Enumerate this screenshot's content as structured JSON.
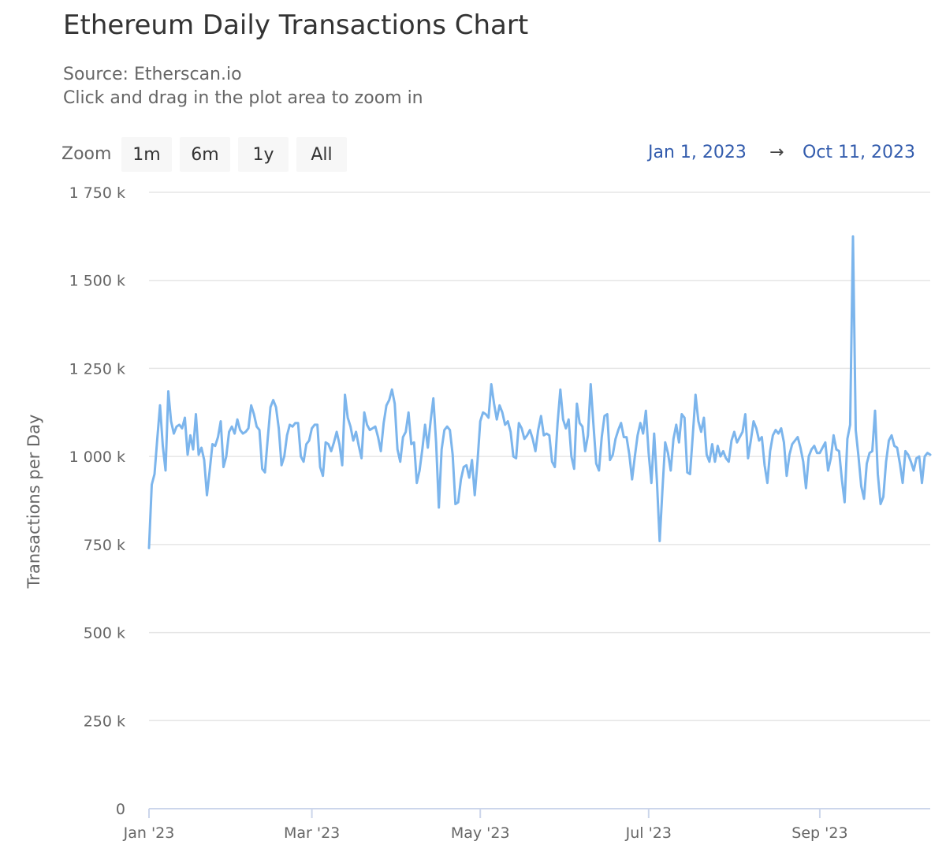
{
  "title": "Ethereum Daily Transactions Chart",
  "subtitle": "Source: Etherscan.io",
  "instruction": "Click and drag in the plot area to zoom in",
  "range_selector": {
    "label": "Zoom",
    "buttons": [
      "1m",
      "6m",
      "1y",
      "All"
    ],
    "from": "Jan 1, 2023",
    "arrow": "→",
    "to": "Oct 11, 2023"
  },
  "colors": {
    "series": "#7cb5ec",
    "grid": "#e6e6e6",
    "axis": "#ccd6eb",
    "range_text": "#335cad"
  },
  "chart_data": {
    "type": "line",
    "ylabel": "Transactions per Day",
    "ylim": [
      0,
      1750000
    ],
    "yticks": [
      0,
      250000,
      500000,
      750000,
      1000000,
      1250000,
      1500000,
      1750000
    ],
    "ytick_labels": [
      "0",
      "250 k",
      "500 k",
      "750 k",
      "1 000 k",
      "1 250 k",
      "1 500 k",
      "1 750 k"
    ],
    "xlim": [
      "2023-01-01",
      "2023-10-11"
    ],
    "xticks": [
      "2023-01-01",
      "2023-03-01",
      "2023-05-01",
      "2023-07-01",
      "2023-09-01"
    ],
    "xtick_labels": [
      "Jan '23",
      "Mar '23",
      "May '23",
      "Jul '23",
      "Sep '23"
    ],
    "grid": true,
    "series": [
      {
        "x": [
          "2023-01-01",
          "2023-01-02",
          "2023-01-03",
          "2023-01-04",
          "2023-01-05",
          "2023-01-06",
          "2023-01-07",
          "2023-01-08",
          "2023-01-09",
          "2023-01-10",
          "2023-01-11",
          "2023-01-12",
          "2023-01-13",
          "2023-01-14",
          "2023-01-15",
          "2023-01-16",
          "2023-01-17",
          "2023-01-18",
          "2023-01-19",
          "2023-01-20",
          "2023-01-21",
          "2023-01-22",
          "2023-01-23",
          "2023-01-24",
          "2023-01-25",
          "2023-01-26",
          "2023-01-27",
          "2023-01-28",
          "2023-01-29",
          "2023-01-30",
          "2023-01-31",
          "2023-02-01",
          "2023-02-02",
          "2023-02-03",
          "2023-02-04",
          "2023-02-05",
          "2023-02-06",
          "2023-02-07",
          "2023-02-08",
          "2023-02-09",
          "2023-02-10",
          "2023-02-11",
          "2023-02-12",
          "2023-02-13",
          "2023-02-14",
          "2023-02-15",
          "2023-02-16",
          "2023-02-17",
          "2023-02-18",
          "2023-02-19",
          "2023-02-20",
          "2023-02-21",
          "2023-02-22",
          "2023-02-23",
          "2023-02-24",
          "2023-02-25",
          "2023-02-26",
          "2023-02-27",
          "2023-02-28",
          "2023-03-01",
          "2023-03-02",
          "2023-03-03",
          "2023-03-04",
          "2023-03-05",
          "2023-03-06",
          "2023-03-07",
          "2023-03-08",
          "2023-03-09",
          "2023-03-10",
          "2023-03-11",
          "2023-03-12",
          "2023-03-13",
          "2023-03-14",
          "2023-03-15",
          "2023-03-16",
          "2023-03-17",
          "2023-03-18",
          "2023-03-19",
          "2023-03-20",
          "2023-03-21",
          "2023-03-22",
          "2023-03-23",
          "2023-03-24",
          "2023-03-25",
          "2023-03-26",
          "2023-03-27",
          "2023-03-28",
          "2023-03-29",
          "2023-03-30",
          "2023-03-31",
          "2023-04-01",
          "2023-04-02",
          "2023-04-03",
          "2023-04-04",
          "2023-04-05",
          "2023-04-06",
          "2023-04-07",
          "2023-04-08",
          "2023-04-09",
          "2023-04-10",
          "2023-04-11",
          "2023-04-12",
          "2023-04-13",
          "2023-04-14",
          "2023-04-15",
          "2023-04-16",
          "2023-04-17",
          "2023-04-18",
          "2023-04-19",
          "2023-04-20",
          "2023-04-21",
          "2023-04-22",
          "2023-04-23",
          "2023-04-24",
          "2023-04-25",
          "2023-04-26",
          "2023-04-27",
          "2023-04-28",
          "2023-04-29",
          "2023-04-30",
          "2023-05-01",
          "2023-05-02",
          "2023-05-03",
          "2023-05-04",
          "2023-05-05",
          "2023-05-06",
          "2023-05-07",
          "2023-05-08",
          "2023-05-09",
          "2023-05-10",
          "2023-05-11",
          "2023-05-12",
          "2023-05-13",
          "2023-05-14",
          "2023-05-15",
          "2023-05-16",
          "2023-05-17",
          "2023-05-18",
          "2023-05-19",
          "2023-05-20",
          "2023-05-21",
          "2023-05-22",
          "2023-05-23",
          "2023-05-24",
          "2023-05-25",
          "2023-05-26",
          "2023-05-27",
          "2023-05-28",
          "2023-05-29",
          "2023-05-30",
          "2023-05-31",
          "2023-06-01",
          "2023-06-02",
          "2023-06-03",
          "2023-06-04",
          "2023-06-05",
          "2023-06-06",
          "2023-06-07",
          "2023-06-08",
          "2023-06-09",
          "2023-06-10",
          "2023-06-11",
          "2023-06-12",
          "2023-06-13",
          "2023-06-14",
          "2023-06-15",
          "2023-06-16",
          "2023-06-17",
          "2023-06-18",
          "2023-06-19",
          "2023-06-20",
          "2023-06-21",
          "2023-06-22",
          "2023-06-23",
          "2023-06-24",
          "2023-06-25",
          "2023-06-26",
          "2023-06-27",
          "2023-06-28",
          "2023-06-29",
          "2023-06-30",
          "2023-07-01",
          "2023-07-02",
          "2023-07-03",
          "2023-07-04",
          "2023-07-05",
          "2023-07-06",
          "2023-07-07",
          "2023-07-08",
          "2023-07-09",
          "2023-07-10",
          "2023-07-11",
          "2023-07-12",
          "2023-07-13",
          "2023-07-14",
          "2023-07-15",
          "2023-07-16",
          "2023-07-17",
          "2023-07-18",
          "2023-07-19",
          "2023-07-20",
          "2023-07-21",
          "2023-07-22",
          "2023-07-23",
          "2023-07-24",
          "2023-07-25",
          "2023-07-26",
          "2023-07-27",
          "2023-07-28",
          "2023-07-29",
          "2023-07-30",
          "2023-07-31",
          "2023-08-01",
          "2023-08-02",
          "2023-08-03",
          "2023-08-04",
          "2023-08-05",
          "2023-08-06",
          "2023-08-07",
          "2023-08-08",
          "2023-08-09",
          "2023-08-10",
          "2023-08-11",
          "2023-08-12",
          "2023-08-13",
          "2023-08-14",
          "2023-08-15",
          "2023-08-16",
          "2023-08-17",
          "2023-08-18",
          "2023-08-19",
          "2023-08-20",
          "2023-08-21",
          "2023-08-22",
          "2023-08-23",
          "2023-08-24",
          "2023-08-25",
          "2023-08-26",
          "2023-08-27",
          "2023-08-28",
          "2023-08-29",
          "2023-08-30",
          "2023-08-31",
          "2023-09-01",
          "2023-09-02",
          "2023-09-03",
          "2023-09-04",
          "2023-09-05",
          "2023-09-06",
          "2023-09-07",
          "2023-09-08",
          "2023-09-09",
          "2023-09-10",
          "2023-09-11",
          "2023-09-12",
          "2023-09-13",
          "2023-09-14",
          "2023-09-15",
          "2023-09-16",
          "2023-09-17",
          "2023-09-18",
          "2023-09-19",
          "2023-09-20",
          "2023-09-21",
          "2023-09-22",
          "2023-09-23",
          "2023-09-24",
          "2023-09-25",
          "2023-09-26",
          "2023-09-27",
          "2023-09-28",
          "2023-09-29",
          "2023-09-30",
          "2023-10-01",
          "2023-10-02",
          "2023-10-03",
          "2023-10-04",
          "2023-10-05",
          "2023-10-06",
          "2023-10-07",
          "2023-10-08",
          "2023-10-09",
          "2023-10-10",
          "2023-10-11"
        ],
        "values": [
          740000,
          920000,
          950000,
          1050000,
          1145000,
          1030000,
          960000,
          1185000,
          1100000,
          1065000,
          1085000,
          1090000,
          1080000,
          1110000,
          1005000,
          1060000,
          1020000,
          1120000,
          1005000,
          1025000,
          990000,
          890000,
          960000,
          1035000,
          1030000,
          1055000,
          1100000,
          970000,
          1000000,
          1070000,
          1085000,
          1065000,
          1105000,
          1075000,
          1065000,
          1070000,
          1080000,
          1145000,
          1120000,
          1085000,
          1075000,
          965000,
          955000,
          1050000,
          1140000,
          1160000,
          1140000,
          1080000,
          975000,
          1000000,
          1060000,
          1090000,
          1085000,
          1095000,
          1095000,
          1000000,
          985000,
          1035000,
          1045000,
          1080000,
          1090000,
          1090000,
          970000,
          945000,
          1040000,
          1035000,
          1015000,
          1040000,
          1070000,
          1035000,
          975000,
          1175000,
          1110000,
          1085000,
          1045000,
          1070000,
          1030000,
          995000,
          1125000,
          1090000,
          1075000,
          1080000,
          1085000,
          1055000,
          1015000,
          1095000,
          1145000,
          1160000,
          1190000,
          1150000,
          1020000,
          985000,
          1055000,
          1070000,
          1125000,
          1035000,
          1040000,
          925000,
          960000,
          1020000,
          1090000,
          1025000,
          1100000,
          1165000,
          1040000,
          855000,
          1020000,
          1075000,
          1085000,
          1075000,
          1005000,
          865000,
          870000,
          935000,
          970000,
          975000,
          940000,
          990000,
          890000,
          985000,
          1100000,
          1125000,
          1120000,
          1110000,
          1205000,
          1150000,
          1105000,
          1145000,
          1125000,
          1090000,
          1100000,
          1070000,
          1000000,
          995000,
          1095000,
          1080000,
          1050000,
          1060000,
          1075000,
          1050000,
          1015000,
          1075000,
          1115000,
          1060000,
          1065000,
          1060000,
          985000,
          970000,
          1095000,
          1190000,
          1105000,
          1080000,
          1105000,
          1000000,
          965000,
          1150000,
          1095000,
          1085000,
          1015000,
          1060000,
          1205000,
          1090000,
          980000,
          960000,
          1055000,
          1115000,
          1120000,
          990000,
          1005000,
          1050000,
          1075000,
          1095000,
          1055000,
          1055000,
          1005000,
          935000,
          1000000,
          1060000,
          1095000,
          1065000,
          1130000,
          1010000,
          925000,
          1065000,
          930000,
          760000,
          905000,
          1040000,
          1010000,
          960000,
          1050000,
          1090000,
          1040000,
          1120000,
          1110000,
          955000,
          950000,
          1060000,
          1175000,
          1100000,
          1070000,
          1110000,
          1005000,
          985000,
          1035000,
          985000,
          1030000,
          1000000,
          1015000,
          995000,
          985000,
          1045000,
          1070000,
          1040000,
          1055000,
          1070000,
          1120000,
          995000,
          1045000,
          1100000,
          1080000,
          1045000,
          1055000,
          975000,
          925000,
          1015000,
          1060000,
          1075000,
          1065000,
          1080000,
          1040000,
          945000,
          1005000,
          1035000,
          1045000,
          1055000,
          1025000,
          985000,
          910000,
          1000000,
          1020000,
          1030000,
          1010000,
          1010000,
          1025000,
          1040000,
          960000,
          995000,
          1060000,
          1020000,
          1015000,
          935000,
          870000,
          1050000,
          1090000,
          1625000,
          1075000,
          1000000,
          915000,
          880000,
          980000,
          1010000,
          1015000,
          1130000,
          950000,
          865000,
          885000,
          985000,
          1045000,
          1060000,
          1030000,
          1025000,
          980000,
          925000,
          1015000,
          1005000,
          985000,
          960000,
          995000,
          1000000,
          925000,
          1000000,
          1010000,
          1005000
        ]
      }
    ]
  }
}
